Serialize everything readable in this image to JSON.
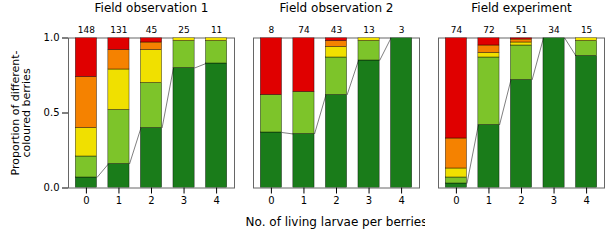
{
  "chart_data": [
    {
      "type": "bar",
      "stacked": true,
      "grid": false,
      "title": "Field observation 1",
      "ylabel": "Proportion of different-\ncoloured berries",
      "categories": [
        "0",
        "1",
        "2",
        "3",
        "4"
      ],
      "n_labels": [
        148,
        131,
        45,
        25,
        11
      ],
      "series": [
        {
          "color": "#1a7c1a",
          "values": [
            0.07,
            0.16,
            0.4,
            0.8,
            0.83
          ]
        },
        {
          "color": "#7dc42a",
          "values": [
            0.14,
            0.36,
            0.3,
            0.18,
            0.15
          ]
        },
        {
          "color": "#f0e000",
          "values": [
            0.19,
            0.27,
            0.22,
            0.02,
            0.02
          ]
        },
        {
          "color": "#f58200",
          "values": [
            0.34,
            0.13,
            0.05,
            0.0,
            0.0
          ]
        },
        {
          "color": "#e00000",
          "values": [
            0.26,
            0.08,
            0.03,
            0.0,
            0.0
          ]
        }
      ],
      "ylim": [
        0,
        1.0
      ],
      "yticks": [
        {
          "value": 0,
          "label": "0.0"
        },
        0.5,
        {
          "value": 1.0,
          "label": "1.0"
        }
      ]
    },
    {
      "type": "bar",
      "stacked": true,
      "grid": false,
      "tick_labels": "x",
      "title": "Field observation 2",
      "xlabel": "No. of living larvae per berries",
      "categories": [
        "0",
        "1",
        "2",
        "3",
        "4"
      ],
      "n_labels": [
        8,
        74,
        43,
        13,
        3
      ],
      "series": [
        {
          "color": "#1a7c1a",
          "values": [
            0.37,
            0.36,
            0.62,
            0.85,
            1.0
          ]
        },
        {
          "color": "#7dc42a",
          "values": [
            0.25,
            0.28,
            0.25,
            0.13,
            0.0
          ]
        },
        {
          "color": "#f0e000",
          "values": [
            0.0,
            0.0,
            0.07,
            0.02,
            0.0
          ]
        },
        {
          "color": "#f58200",
          "values": [
            0.0,
            0.0,
            0.04,
            0.0,
            0.0
          ]
        },
        {
          "color": "#e00000",
          "values": [
            0.38,
            0.36,
            0.02,
            0.0,
            0.0
          ]
        }
      ],
      "ylim": [
        0,
        1.0
      ],
      "yticks": [
        {
          "value": 0,
          "label": "0.0"
        },
        0.5,
        {
          "value": 1.0,
          "label": "1.0"
        }
      ]
    },
    {
      "type": "bar",
      "stacked": true,
      "grid": false,
      "tick_labels": "x",
      "title": "Field experiment",
      "categories": [
        "0",
        "1",
        "2",
        "3",
        "4"
      ],
      "n_labels": [
        74,
        72,
        51,
        34,
        15
      ],
      "series": [
        {
          "color": "#1a7c1a",
          "values": [
            0.03,
            0.42,
            0.72,
            1.0,
            0.88
          ]
        },
        {
          "color": "#7dc42a",
          "values": [
            0.04,
            0.45,
            0.23,
            0.0,
            0.1
          ]
        },
        {
          "color": "#f0e000",
          "values": [
            0.06,
            0.03,
            0.02,
            0.0,
            0.02
          ]
        },
        {
          "color": "#f58200",
          "values": [
            0.2,
            0.05,
            0.02,
            0.0,
            0.0
          ]
        },
        {
          "color": "#e00000",
          "values": [
            0.67,
            0.05,
            0.01,
            0.0,
            0.0
          ]
        }
      ],
      "ylim": [
        0,
        1.0
      ],
      "yticks": [
        {
          "value": 0,
          "label": "0.0"
        },
        0.5,
        {
          "value": 1.0,
          "label": "1.0"
        }
      ]
    }
  ]
}
